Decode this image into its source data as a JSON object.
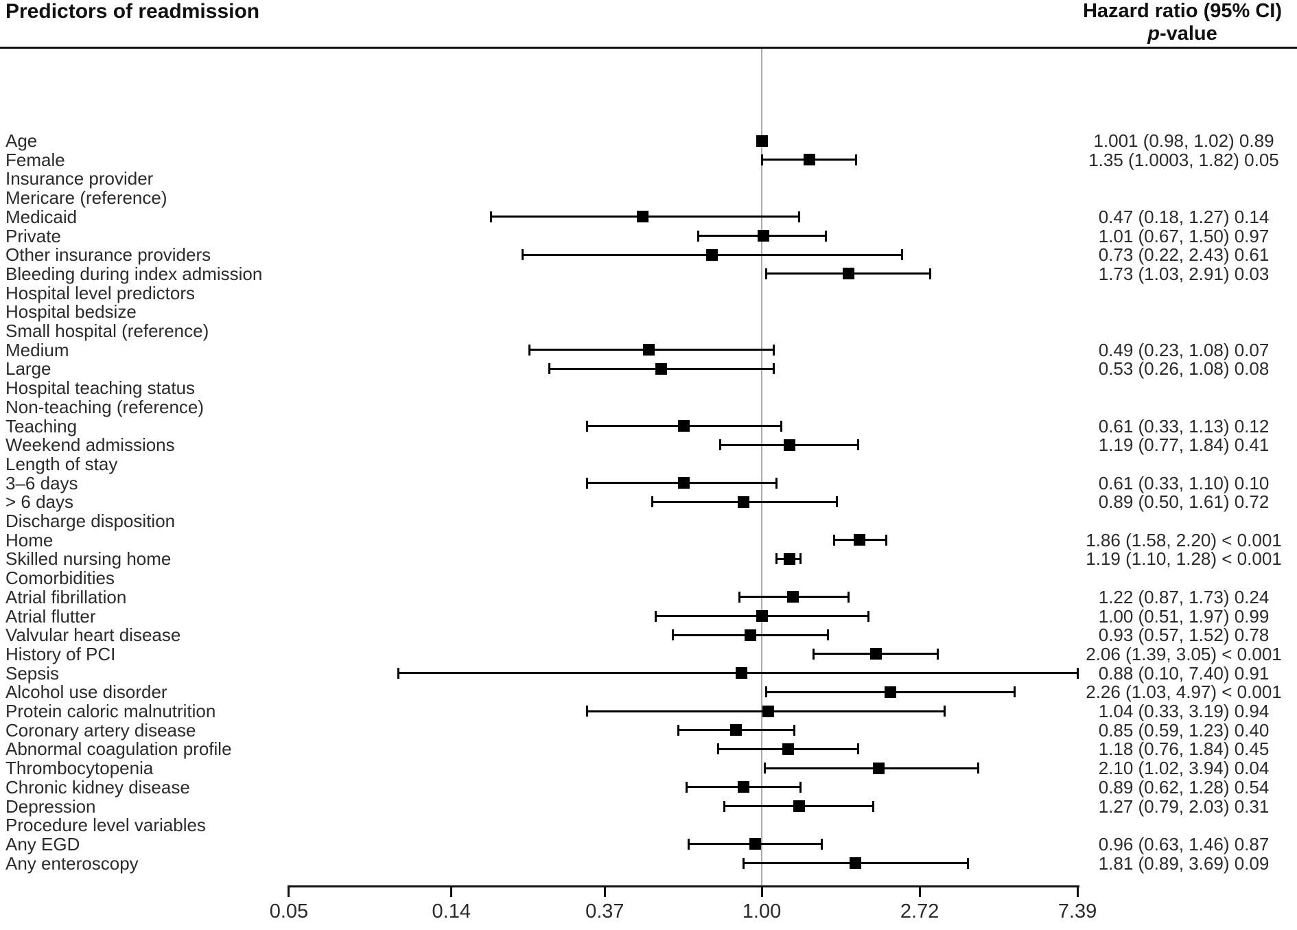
{
  "title": "Predictors of readmission",
  "column_header": {
    "line1": "Hazard ratio (95% CI)",
    "p_italic": "p",
    "p_rest": "-value"
  },
  "colors": {
    "ink": "#111111",
    "text": "#2b2b2b",
    "marker": "#000000",
    "reference_line": "#a9a9a9",
    "background": "#ffffff"
  },
  "chart_data": {
    "type": "forest",
    "x_scale": "log-e",
    "reference_line": 1.0,
    "x_ticks": [
      0.05,
      0.14,
      0.37,
      1.0,
      2.72,
      7.39
    ],
    "x_tick_labels": [
      "0.05",
      "0.14",
      "0.37",
      "1.00",
      "2.72",
      "7.39"
    ],
    "x_range": [
      0.05,
      7.39
    ],
    "legend": "none",
    "rows": [
      {
        "label": "Age",
        "hr": 1.001,
        "lo": 0.98,
        "hi": 1.02,
        "ci_text": "1.001 (0.98, 1.02)",
        "p": "0.89"
      },
      {
        "label": "Female",
        "hr": 1.35,
        "lo": 1.0003,
        "hi": 1.82,
        "ci_text": "1.35 (1.0003, 1.82)",
        "p": "0.05"
      },
      {
        "label": "Insurance provider"
      },
      {
        "label": "Mericare (reference)"
      },
      {
        "label": "Medicaid",
        "hr": 0.47,
        "lo": 0.18,
        "hi": 1.27,
        "ci_text": "0.47 (0.18, 1.27)",
        "p": "0.14"
      },
      {
        "label": "Private",
        "hr": 1.01,
        "lo": 0.67,
        "hi": 1.5,
        "ci_text": "1.01 (0.67, 1.50)",
        "p": "0.97"
      },
      {
        "label": "Other insurance providers",
        "hr": 0.73,
        "lo": 0.22,
        "hi": 2.43,
        "ci_text": "0.73 (0.22, 2.43)",
        "p": "0.61"
      },
      {
        "label": "Bleeding during index admission",
        "hr": 1.73,
        "lo": 1.03,
        "hi": 2.91,
        "ci_text": "1.73 (1.03, 2.91)",
        "p": "0.03"
      },
      {
        "label": "Hospital level predictors"
      },
      {
        "label": "Hospital bedsize"
      },
      {
        "label": "Small hospital (reference)"
      },
      {
        "label": "Medium",
        "hr": 0.49,
        "lo": 0.23,
        "hi": 1.08,
        "ci_text": "0.49 (0.23, 1.08)",
        "p": "0.07"
      },
      {
        "label": "Large",
        "hr": 0.53,
        "lo": 0.26,
        "hi": 1.08,
        "ci_text": "0.53 (0.26, 1.08)",
        "p": "0.08"
      },
      {
        "label": "Hospital teaching status"
      },
      {
        "label": "Non-teaching (reference)"
      },
      {
        "label": "Teaching",
        "hr": 0.61,
        "lo": 0.33,
        "hi": 1.13,
        "ci_text": "0.61 (0.33, 1.13)",
        "p": "0.12"
      },
      {
        "label": "Weekend admissions",
        "hr": 1.19,
        "lo": 0.77,
        "hi": 1.84,
        "ci_text": "1.19 (0.77, 1.84)",
        "p": "0.41"
      },
      {
        "label": "Length of stay"
      },
      {
        "label": "3–6 days",
        "hr": 0.61,
        "lo": 0.33,
        "hi": 1.1,
        "ci_text": "0.61 (0.33, 1.10)",
        "p": "0.10"
      },
      {
        "label": "> 6 days",
        "hr": 0.89,
        "lo": 0.5,
        "hi": 1.61,
        "ci_text": "0.89 (0.50, 1.61)",
        "p": "0.72"
      },
      {
        "label": "Discharge disposition"
      },
      {
        "label": "Home",
        "hr": 1.86,
        "lo": 1.58,
        "hi": 2.2,
        "ci_text": "1.86 (1.58, 2.20)",
        "p": "< 0.001"
      },
      {
        "label": "Skilled nursing home",
        "hr": 1.19,
        "lo": 1.1,
        "hi": 1.28,
        "ci_text": "1.19 (1.10, 1.28)",
        "p": "< 0.001"
      },
      {
        "label": "Comorbidities"
      },
      {
        "label": "Atrial fibrillation",
        "hr": 1.22,
        "lo": 0.87,
        "hi": 1.73,
        "ci_text": "1.22 (0.87, 1.73)",
        "p": "0.24"
      },
      {
        "label": "Atrial flutter",
        "hr": 1.0,
        "lo": 0.51,
        "hi": 1.97,
        "ci_text": "1.00 (0.51, 1.97)",
        "p": "0.99"
      },
      {
        "label": "Valvular heart disease",
        "hr": 0.93,
        "lo": 0.57,
        "hi": 1.52,
        "ci_text": "0.93 (0.57, 1.52)",
        "p": "0.78"
      },
      {
        "label": "History of PCI",
        "hr": 2.06,
        "lo": 1.39,
        "hi": 3.05,
        "ci_text": "2.06 (1.39, 3.05)",
        "p": "< 0.001"
      },
      {
        "label": "Sepsis",
        "hr": 0.88,
        "lo": 0.1,
        "hi": 7.4,
        "ci_text": "0.88 (0.10, 7.40)",
        "p": "0.91"
      },
      {
        "label": "Alcohol use disorder",
        "hr": 2.26,
        "lo": 1.03,
        "hi": 4.97,
        "ci_text": "2.26 (1.03, 4.97)",
        "p": "< 0.001"
      },
      {
        "label": "Protein caloric malnutrition",
        "hr": 1.04,
        "lo": 0.33,
        "hi": 3.19,
        "ci_text": "1.04 (0.33, 3.19)",
        "p": "0.94"
      },
      {
        "label": "Coronary artery disease",
        "hr": 0.85,
        "lo": 0.59,
        "hi": 1.23,
        "ci_text": "0.85 (0.59, 1.23)",
        "p": "0.40"
      },
      {
        "label": "Abnormal coagulation profile",
        "hr": 1.18,
        "lo": 0.76,
        "hi": 1.84,
        "ci_text": "1.18 (0.76, 1.84)",
        "p": "0.45"
      },
      {
        "label": "Thrombocytopenia",
        "hr": 2.1,
        "lo": 1.02,
        "hi": 3.94,
        "ci_text": "2.10 (1.02, 3.94)",
        "p": "0.04"
      },
      {
        "label": "Chronic kidney disease",
        "hr": 0.89,
        "lo": 0.62,
        "hi": 1.28,
        "ci_text": "0.89 (0.62, 1.28)",
        "p": "0.54"
      },
      {
        "label": "Depression",
        "hr": 1.27,
        "lo": 0.79,
        "hi": 2.03,
        "ci_text": "1.27 (0.79, 2.03)",
        "p": "0.31"
      },
      {
        "label": "Procedure level variables"
      },
      {
        "label": "Any EGD",
        "hr": 0.96,
        "lo": 0.63,
        "hi": 1.46,
        "ci_text": "0.96 (0.63, 1.46)",
        "p": "0.87"
      },
      {
        "label": "Any enteroscopy",
        "hr": 1.81,
        "lo": 0.89,
        "hi": 3.69,
        "ci_text": "1.81 (0.89, 3.69)",
        "p": "0.09"
      }
    ]
  }
}
